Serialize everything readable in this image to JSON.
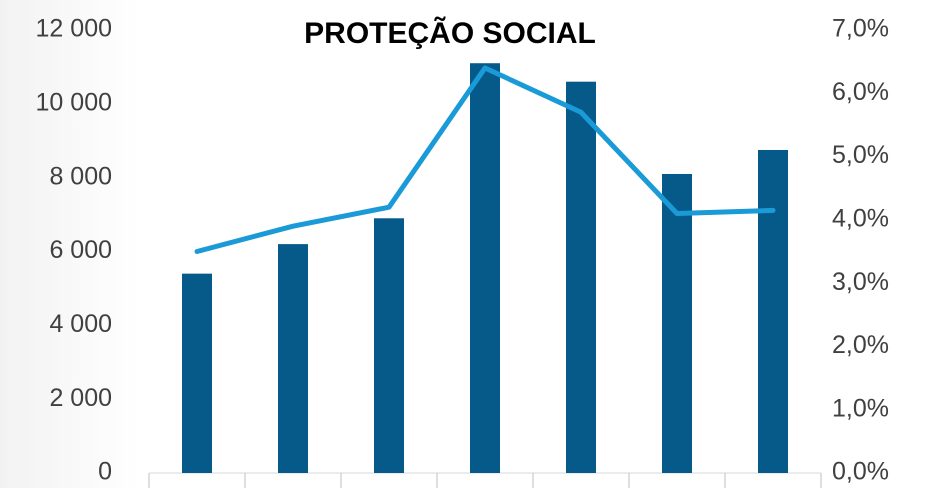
{
  "chart_data": {
    "type": "bar_line",
    "title": "PROTEÇÃO SOCIAL",
    "categories": [
      null,
      null,
      null,
      null,
      null,
      null,
      null
    ],
    "series": [
      {
        "type": "bar",
        "color": "#065a8a",
        "values": [
          5400,
          6200,
          6900,
          11100,
          10600,
          8100,
          8750
        ]
      },
      {
        "type": "line",
        "axis": "y2",
        "color": "#1a9ad6",
        "values": [
          3.5,
          3.9,
          4.2,
          6.4,
          5.7,
          4.1,
          4.15
        ]
      }
    ],
    "ylim": [
      0,
      12000
    ],
    "yticks": [
      0,
      {
        "value": 2000,
        "label": "2 000"
      },
      {
        "value": 4000,
        "label": "4 000"
      },
      {
        "value": 6000,
        "label": "6 000"
      },
      {
        "value": 8000,
        "label": "8 000"
      },
      {
        "value": 10000,
        "label": "10 000"
      },
      {
        "value": 12000,
        "label": "12 000"
      }
    ],
    "y2lim": [
      0,
      7
    ],
    "y2ticks": [
      {
        "value": 0,
        "label": "0,0%"
      },
      {
        "value": 1,
        "label": "1,0%"
      },
      {
        "value": 2,
        "label": "2,0%"
      },
      {
        "value": 3,
        "label": "3,0%"
      },
      {
        "value": 4,
        "label": "4,0%"
      },
      {
        "value": 5,
        "label": "5,0%"
      },
      {
        "value": 6,
        "label": "6,0%"
      },
      {
        "value": 7,
        "label": "7,0%"
      }
    ]
  }
}
